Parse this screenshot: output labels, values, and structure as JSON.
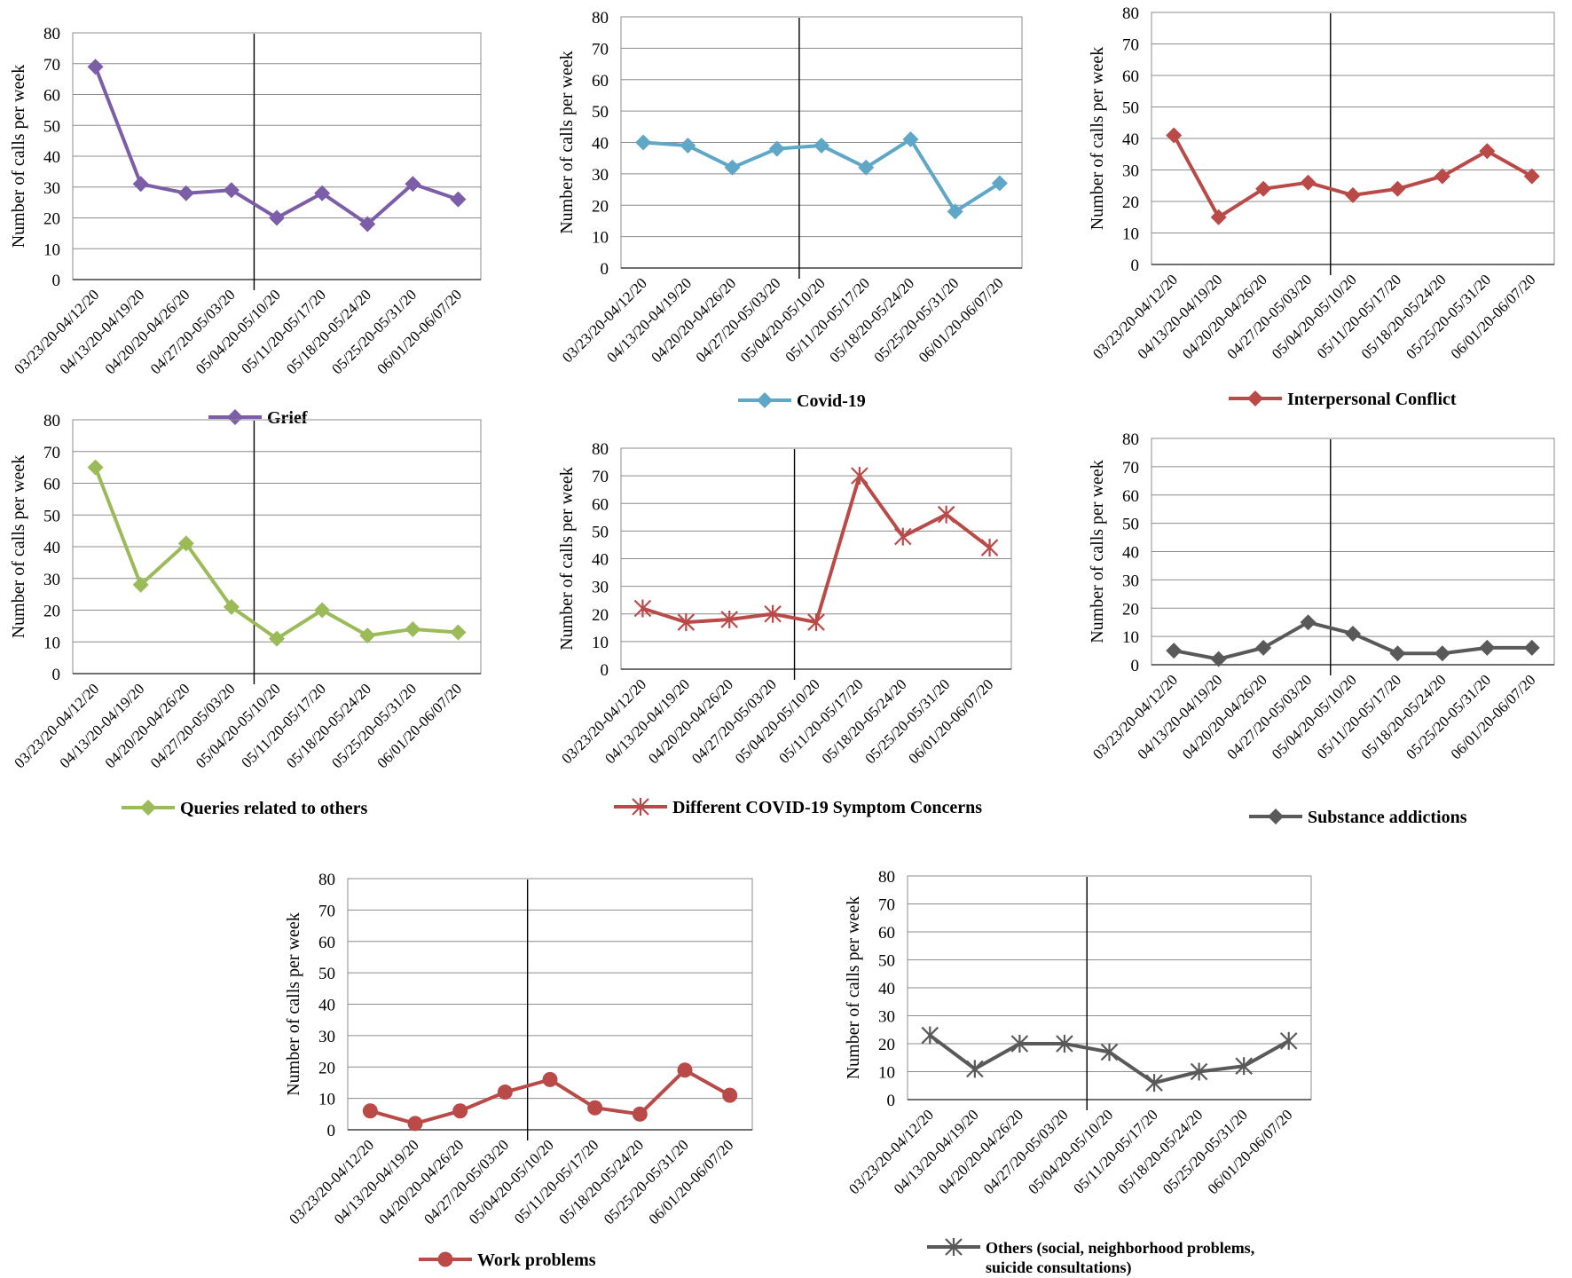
{
  "chart_data": [
    {
      "type": "line",
      "categories": [
        "03/23/20-04/12/20",
        "04/13/20-04/19/20",
        "04/20/20-04/26/20",
        "04/27/20-05/03/20",
        "05/04/20-05/10/20",
        "05/11/20-05/17/20",
        "05/18/20-05/24/20",
        "05/25/20-05/31/20",
        "06/01/20-06/07/20"
      ],
      "series": [
        {
          "name": "Grief",
          "values": [
            69,
            31,
            28,
            29,
            20,
            28,
            18,
            31,
            26
          ]
        }
      ],
      "ylabel": "Number of calls per week",
      "ylim": [
        0,
        80
      ],
      "yticks": [
        0,
        10,
        20,
        30,
        40,
        50,
        60,
        70,
        80
      ],
      "marker": "diamond",
      "color": "#7b5ea7",
      "grid": true,
      "legend_position": "bottom",
      "reference_line_after_category": "04/27/20-05/03/20"
    },
    {
      "type": "line",
      "categories": [
        "03/23/20-04/12/20",
        "04/13/20-04/19/20",
        "04/20/20-04/26/20",
        "04/27/20-05/03/20",
        "05/04/20-05/10/20",
        "05/11/20-05/17/20",
        "05/18/20-05/24/20",
        "05/25/20-05/31/20",
        "06/01/20-06/07/20"
      ],
      "series": [
        {
          "name": "Covid-19",
          "values": [
            40,
            39,
            32,
            38,
            39,
            32,
            41,
            18,
            27
          ]
        }
      ],
      "ylabel": "Number of calls per week",
      "ylim": [
        0,
        80
      ],
      "yticks": [
        0,
        10,
        20,
        30,
        40,
        50,
        60,
        70,
        80
      ],
      "marker": "diamond",
      "color": "#5fa7c7",
      "grid": true,
      "legend_position": "bottom",
      "reference_line_after_category": "04/27/20-05/03/20"
    },
    {
      "type": "line",
      "categories": [
        "03/23/20-04/12/20",
        "04/13/20-04/19/20",
        "04/20/20-04/26/20",
        "04/27/20-05/03/20",
        "05/04/20-05/10/20",
        "05/11/20-05/17/20",
        "05/18/20-05/24/20",
        "05/25/20-05/31/20",
        "06/01/20-06/07/20"
      ],
      "series": [
        {
          "name": "Interpersonal Conflict",
          "values": [
            41,
            15,
            24,
            26,
            22,
            24,
            28,
            36,
            28
          ]
        }
      ],
      "ylabel": "Number of calls per week",
      "ylim": [
        0,
        80
      ],
      "yticks": [
        0,
        10,
        20,
        30,
        40,
        50,
        60,
        70,
        80
      ],
      "marker": "diamond",
      "color": "#b94a48",
      "grid": true,
      "legend_position": "bottom",
      "reference_line_after_category": "04/27/20-05/03/20"
    },
    {
      "type": "line",
      "categories": [
        "03/23/20-04/12/20",
        "04/13/20-04/19/20",
        "04/20/20-04/26/20",
        "04/27/20-05/03/20",
        "05/04/20-05/10/20",
        "05/11/20-05/17/20",
        "05/18/20-05/24/20",
        "05/25/20-05/31/20",
        "06/01/20-06/07/20"
      ],
      "series": [
        {
          "name": "Queries related to others",
          "values": [
            65,
            28,
            41,
            21,
            11,
            20,
            12,
            14,
            13
          ]
        }
      ],
      "ylabel": "Number of calls per week",
      "ylim": [
        0,
        80
      ],
      "yticks": [
        0,
        10,
        20,
        30,
        40,
        50,
        60,
        70,
        80
      ],
      "marker": "diamond",
      "color": "#9bbb59",
      "grid": true,
      "legend_position": "bottom",
      "reference_line_after_category": "04/27/20-05/03/20"
    },
    {
      "type": "line",
      "categories": [
        "03/23/20-04/12/20",
        "04/13/20-04/19/20",
        "04/20/20-04/26/20",
        "04/27/20-05/03/20",
        "05/04/20-05/10/20",
        "05/11/20-05/17/20",
        "05/18/20-05/24/20",
        "05/25/20-05/31/20",
        "06/01/20-06/07/20"
      ],
      "series": [
        {
          "name": "Different COVID-19 Symptom Concerns",
          "values": [
            22,
            17,
            18,
            20,
            17,
            70,
            48,
            56,
            44
          ]
        }
      ],
      "ylabel": "Number of calls per week",
      "ylim": [
        0,
        80
      ],
      "yticks": [
        0,
        10,
        20,
        30,
        40,
        50,
        60,
        70,
        80
      ],
      "marker": "star",
      "color": "#b94a48",
      "grid": true,
      "legend_position": "bottom",
      "reference_line_after_category": "04/27/20-05/03/20"
    },
    {
      "type": "line",
      "categories": [
        "03/23/20-04/12/20",
        "04/13/20-04/19/20",
        "04/20/20-04/26/20",
        "04/27/20-05/03/20",
        "05/04/20-05/10/20",
        "05/11/20-05/17/20",
        "05/18/20-05/24/20",
        "05/25/20-05/31/20",
        "06/01/20-06/07/20"
      ],
      "series": [
        {
          "name": "Substance addictions",
          "values": [
            5,
            2,
            6,
            15,
            11,
            4,
            4,
            6,
            6
          ]
        }
      ],
      "ylabel": "Number of calls per week",
      "ylim": [
        0,
        80
      ],
      "yticks": [
        0,
        10,
        20,
        30,
        40,
        50,
        60,
        70,
        80
      ],
      "marker": "diamond",
      "color": "#595959",
      "grid": true,
      "legend_position": "bottom",
      "reference_line_after_category": "04/27/20-05/03/20"
    },
    {
      "type": "line",
      "categories": [
        "03/23/20-04/12/20",
        "04/13/20-04/19/20",
        "04/20/20-04/26/20",
        "04/27/20-05/03/20",
        "05/04/20-05/10/20",
        "05/11/20-05/17/20",
        "05/18/20-05/24/20",
        "05/25/20-05/31/20",
        "06/01/20-06/07/20"
      ],
      "series": [
        {
          "name": "Work problems",
          "values": [
            6,
            2,
            6,
            12,
            16,
            7,
            5,
            19,
            11
          ]
        }
      ],
      "ylabel": "Number of calls per week",
      "ylim": [
        0,
        80
      ],
      "yticks": [
        0,
        10,
        20,
        30,
        40,
        50,
        60,
        70,
        80
      ],
      "marker": "circle",
      "color": "#b94a48",
      "grid": true,
      "legend_position": "bottom",
      "reference_line_after_category": "04/27/20-05/03/20"
    },
    {
      "type": "line",
      "categories": [
        "03/23/20-04/12/20",
        "04/13/20-04/19/20",
        "04/20/20-04/26/20",
        "04/27/20-05/03/20",
        "05/04/20-05/10/20",
        "05/11/20-05/17/20",
        "05/18/20-05/24/20",
        "05/25/20-05/31/20",
        "06/01/20-06/07/20"
      ],
      "series": [
        {
          "name": "Others (social, neighborhood problems, suicide consultations)",
          "name_lines": [
            "Others (social, neighborhood problems,",
            "suicide consultations)"
          ],
          "values": [
            23,
            11,
            20,
            20,
            17,
            6,
            10,
            12,
            21
          ]
        }
      ],
      "ylabel": "Number of calls per week",
      "ylim": [
        0,
        80
      ],
      "yticks": [
        0,
        10,
        20,
        30,
        40,
        50,
        60,
        70,
        80
      ],
      "marker": "star",
      "color": "#595959",
      "grid": true,
      "legend_position": "bottom",
      "reference_line_after_category": "04/27/20-05/03/20"
    }
  ]
}
